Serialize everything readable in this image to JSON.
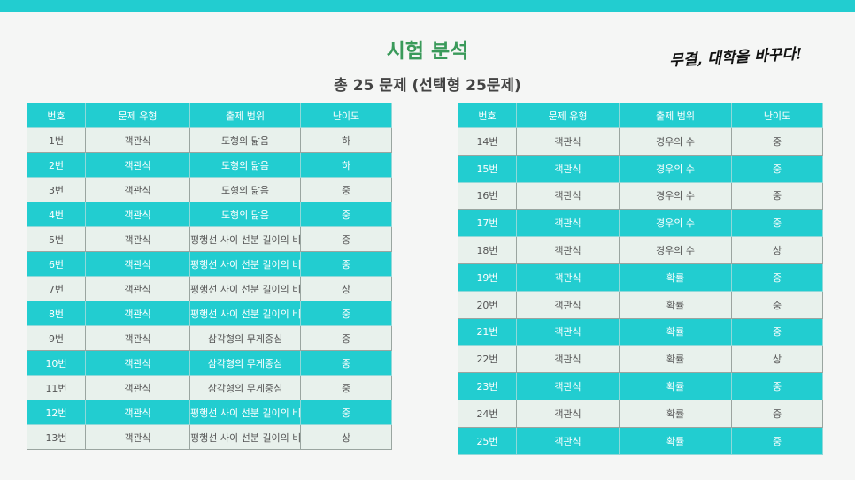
{
  "header": {
    "title": "시험 분석",
    "subtitle": "총 25 문제 (선택형 25문제)",
    "slogan": "무결, 대학을 바꾸다!"
  },
  "table_headers": [
    "번호",
    "문제 유형",
    "출제 범위",
    "난이도"
  ],
  "left_rows": [
    [
      "1번",
      "객관식",
      "도형의 닮음",
      "하"
    ],
    [
      "2번",
      "객관식",
      "도형의 닮음",
      "하"
    ],
    [
      "3번",
      "객관식",
      "도형의 닮음",
      "중"
    ],
    [
      "4번",
      "객관식",
      "도형의 닮음",
      "중"
    ],
    [
      "5번",
      "객관식",
      "평행선 사이 선분 길이의 비",
      "중"
    ],
    [
      "6번",
      "객관식",
      "평행선 사이 선분 길이의 비",
      "중"
    ],
    [
      "7번",
      "객관식",
      "평행선 사이 선분 길이의 비",
      "상"
    ],
    [
      "8번",
      "객관식",
      "평행선 사이 선분 길이의 비",
      "중"
    ],
    [
      "9번",
      "객관식",
      "삼각형의 무게중심",
      "중"
    ],
    [
      "10번",
      "객관식",
      "삼각형의 무게중심",
      "중"
    ],
    [
      "11번",
      "객관식",
      "삼각형의 무게중심",
      "중"
    ],
    [
      "12번",
      "객관식",
      "평행선 사이 선분 길이의 비",
      "중"
    ],
    [
      "13번",
      "객관식",
      "평행선 사이 선분 길이의 비",
      "상"
    ]
  ],
  "right_rows": [
    [
      "14번",
      "객관식",
      "경우의 수",
      "중"
    ],
    [
      "15번",
      "객관식",
      "경우의 수",
      "중"
    ],
    [
      "16번",
      "객관식",
      "경우의 수",
      "중"
    ],
    [
      "17번",
      "객관식",
      "경우의 수",
      "중"
    ],
    [
      "18번",
      "객관식",
      "경우의 수",
      "상"
    ],
    [
      "19번",
      "객관식",
      "확률",
      "중"
    ],
    [
      "20번",
      "객관식",
      "확률",
      "중"
    ],
    [
      "21번",
      "객관식",
      "확률",
      "중"
    ],
    [
      "22번",
      "객관식",
      "확률",
      "상"
    ],
    [
      "23번",
      "객관식",
      "확률",
      "중"
    ],
    [
      "24번",
      "객관식",
      "확률",
      "중"
    ],
    [
      "25번",
      "객관식",
      "확률",
      "중"
    ]
  ],
  "colors": {
    "accent": "#22cdd0",
    "title": "#3a9a5a",
    "row_light": "#e8f1ec"
  }
}
